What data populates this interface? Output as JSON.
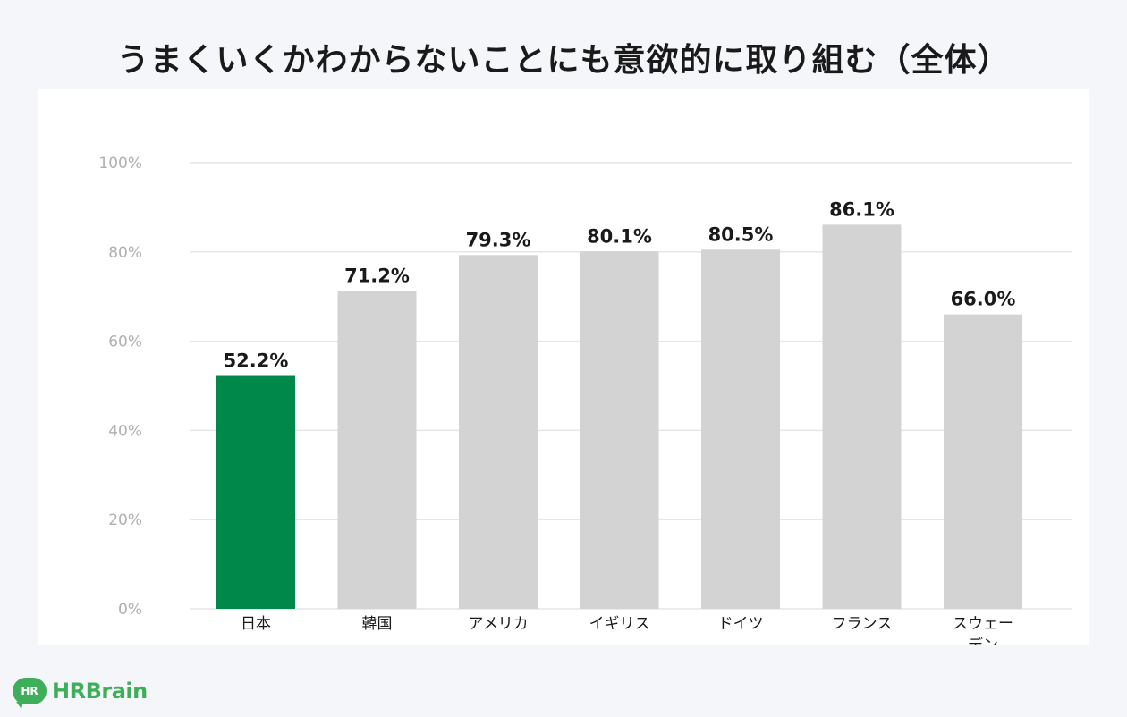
{
  "chart_data": {
    "type": "bar",
    "title": "うまくいくかわからないことにも意欲的に取り組む（全体）",
    "categories": [
      "日本",
      "韓国",
      "アメリカ",
      "イギリス",
      "ドイツ",
      "フランス",
      "スウェーデン"
    ],
    "category_lines": [
      [
        "日本"
      ],
      [
        "韓国"
      ],
      [
        "アメリカ"
      ],
      [
        "イギリス"
      ],
      [
        "ドイツ"
      ],
      [
        "フランス"
      ],
      [
        "スウェー",
        "デン"
      ]
    ],
    "values": [
      52.2,
      71.2,
      79.3,
      80.1,
      80.5,
      86.1,
      66.0
    ],
    "value_labels": [
      "52.2%",
      "71.2%",
      "79.3%",
      "80.1%",
      "80.5%",
      "86.1%",
      "66.0%"
    ],
    "highlight_index": 0,
    "ylim": [
      0,
      100
    ],
    "yticks": [
      0,
      20,
      40,
      60,
      80,
      100
    ],
    "ytick_labels": [
      "0%",
      "20%",
      "40%",
      "60%",
      "80%",
      "100%"
    ],
    "grid": true,
    "colors": {
      "highlight": "#00884b",
      "bar": "#d3d3d3",
      "grid": "#e6e6e6",
      "tick_text": "#b0b0b0",
      "value_text": "#1a1a1a",
      "category_text": "#1a1a1a"
    }
  },
  "brand": {
    "badge": "HR",
    "name": "HRBrain"
  }
}
